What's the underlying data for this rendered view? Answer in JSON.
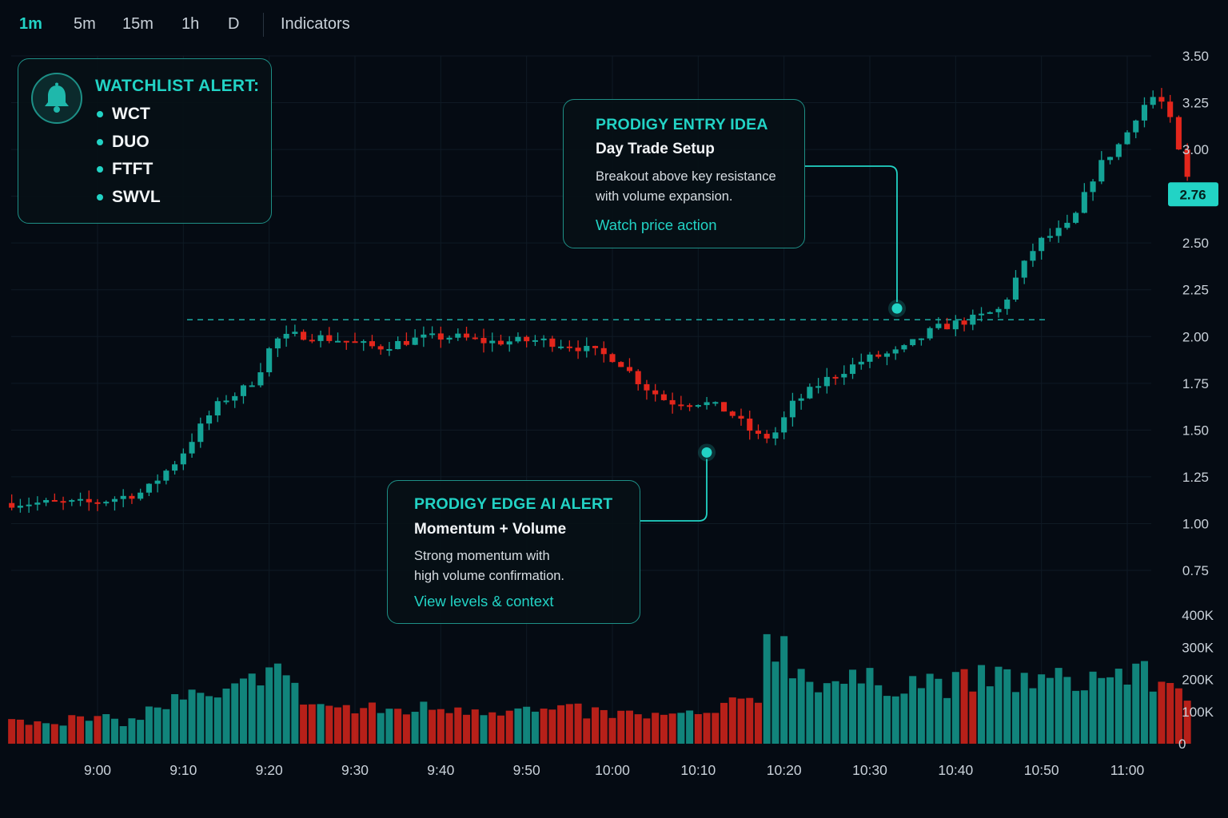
{
  "toolbar": {
    "timeframes": [
      "1m",
      "5m",
      "15m",
      "1h",
      "D"
    ],
    "active": "1m",
    "indicators_label": "Indicators"
  },
  "watchlist": {
    "title": "WATCHLIST ALERT:",
    "icon": "bell-icon",
    "symbols": [
      "WCT",
      "DUO",
      "FTFT",
      "SWVL"
    ]
  },
  "entry_card": {
    "title": "PRODIGY ENTRY IDEA",
    "subtitle": "Day Trade Setup",
    "line1": "Breakout above key resistance",
    "line2": "with volume expansion.",
    "link": "Watch price action"
  },
  "edge_card": {
    "title": "PRODIGY EDGE AI ALERT",
    "subtitle": "Momentum + Volume",
    "line1": "Strong momentum with",
    "line2": "high volume confirmation.",
    "link": "View levels & context"
  },
  "colors": {
    "background": "#050b13",
    "accent": "#22d3c5",
    "up": "#14a396",
    "down": "#e3261c",
    "grid": "#0f1a24",
    "axis_text": "#c9d1d9"
  },
  "chart_data": {
    "type": "candlestick",
    "price_axis": {
      "ticks": [
        "3.50",
        "3.25",
        "3.00",
        "2.75",
        "2.50",
        "2.25",
        "2.00",
        "1.75",
        "1.50",
        "1.25",
        "1.00",
        "0.75"
      ],
      "range": [
        0.75,
        3.5
      ]
    },
    "current_price": "2.76",
    "resistance_level": 2.09,
    "volume_axis": {
      "ticks": [
        "400K",
        "300K",
        "200K",
        "100K",
        "0"
      ],
      "range": [
        0,
        400000
      ]
    },
    "time_axis": {
      "ticks": [
        "9:00",
        "9:10",
        "9:20",
        "9:30",
        "9:40",
        "9:50",
        "10:00",
        "10:10",
        "10:20",
        "10:30",
        "10:40",
        "10:50",
        "11:00"
      ],
      "start_minute": -10,
      "end_minute": 127
    },
    "price_path": [
      [
        0,
        1.11
      ],
      [
        6,
        1.17
      ],
      [
        10,
        1.35
      ],
      [
        13,
        1.55
      ],
      [
        15,
        1.66
      ],
      [
        17,
        1.7
      ],
      [
        19,
        1.78
      ],
      [
        21,
        1.98
      ],
      [
        24,
        2.01
      ],
      [
        29,
        1.98
      ],
      [
        33,
        1.94
      ],
      [
        38,
        1.99
      ],
      [
        42,
        2.0
      ],
      [
        46,
        1.97
      ],
      [
        52,
        1.98
      ],
      [
        56,
        1.95
      ],
      [
        61,
        1.88
      ],
      [
        64,
        1.74
      ],
      [
        67,
        1.65
      ],
      [
        71,
        1.65
      ],
      [
        74,
        1.6
      ],
      [
        76,
        1.52
      ],
      [
        77,
        1.48
      ],
      [
        78,
        1.45
      ],
      [
        80,
        1.5
      ],
      [
        81,
        1.62
      ],
      [
        85,
        1.76
      ],
      [
        90,
        1.88
      ],
      [
        94,
        1.92
      ],
      [
        98,
        2.04
      ],
      [
        103,
        2.1
      ],
      [
        106,
        2.15
      ],
      [
        107,
        2.27
      ],
      [
        110,
        2.5
      ],
      [
        114,
        2.6
      ],
      [
        117,
        2.9
      ],
      [
        120,
        3.05
      ],
      [
        122,
        3.22
      ],
      [
        124,
        3.3
      ],
      [
        126,
        3.1
      ],
      [
        127,
        2.87
      ],
      [
        129,
        2.76
      ],
      [
        131,
        2.76
      ]
    ],
    "volume_path": [
      [
        0,
        75000
      ],
      [
        4,
        70000
      ],
      [
        7,
        115000
      ],
      [
        11,
        145000
      ],
      [
        14,
        130000
      ],
      [
        18,
        190000
      ],
      [
        20,
        280000
      ],
      [
        23,
        160000
      ],
      [
        25,
        125000
      ],
      [
        30,
        105000
      ],
      [
        35,
        105000
      ],
      [
        41,
        115000
      ],
      [
        46,
        110000
      ],
      [
        51,
        100000
      ],
      [
        56,
        100000
      ],
      [
        61,
        90000
      ],
      [
        66,
        85000
      ],
      [
        71,
        90000
      ],
      [
        75,
        125000
      ],
      [
        77,
        150000
      ],
      [
        78,
        350000
      ],
      [
        79,
        330000
      ],
      [
        82,
        220000
      ],
      [
        85,
        195000
      ],
      [
        90,
        190000
      ],
      [
        96,
        195000
      ],
      [
        100,
        185000
      ],
      [
        105,
        205000
      ],
      [
        110,
        190000
      ],
      [
        115,
        200000
      ],
      [
        120,
        220000
      ],
      [
        125,
        185000
      ],
      [
        130,
        150000
      ]
    ],
    "signals": [
      {
        "name": "entry-signal",
        "minute": 106,
        "price": 2.15
      },
      {
        "name": "edge-signal",
        "minute": 78,
        "price": 1.38
      }
    ]
  }
}
